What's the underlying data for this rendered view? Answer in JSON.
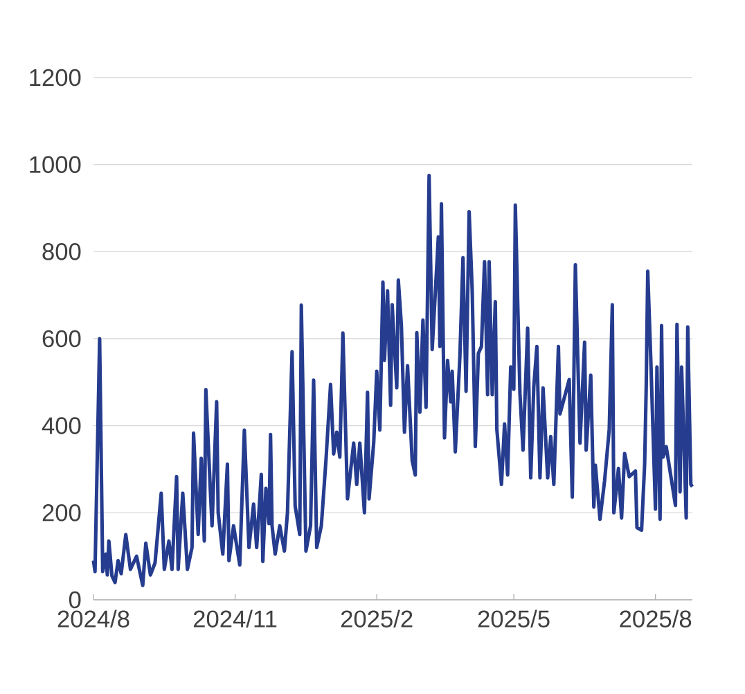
{
  "chart_data": {
    "type": "line",
    "color": "#253c8f",
    "grid": "y",
    "marker": "none",
    "line_style": "solid",
    "ylim": [
      0,
      1200
    ],
    "yticks": [
      0,
      200,
      400,
      600,
      800,
      1000,
      1200
    ],
    "xlim": [
      "2024-08-01",
      "2025-08-25"
    ],
    "xticks": [
      {
        "value": "2024-08-01",
        "label": "2024/8"
      },
      {
        "value": "2024-11-01",
        "label": "2024/11"
      },
      {
        "value": "2025-02-01",
        "label": "2025/2"
      },
      {
        "value": "2025-05-01",
        "label": "2025/5"
      },
      {
        "value": "2025-08-01",
        "label": "2025/8"
      }
    ],
    "x": [
      "2024-08-01",
      "2024-08-02",
      "2024-08-05",
      "2024-08-07",
      "2024-08-09",
      "2024-08-10",
      "2024-08-11",
      "2024-08-13",
      "2024-08-15",
      "2024-08-17",
      "2024-08-19",
      "2024-08-22",
      "2024-08-25",
      "2024-08-29",
      "2024-09-02",
      "2024-09-04",
      "2024-09-07",
      "2024-09-10",
      "2024-09-14",
      "2024-09-16",
      "2024-09-19",
      "2024-09-21",
      "2024-09-24",
      "2024-09-25",
      "2024-09-28",
      "2024-10-01",
      "2024-10-04",
      "2024-10-05",
      "2024-10-08",
      "2024-10-10",
      "2024-10-12",
      "2024-10-13",
      "2024-10-16",
      "2024-10-17",
      "2024-10-20",
      "2024-10-21",
      "2024-10-24",
      "2024-10-27",
      "2024-10-28",
      "2024-10-31",
      "2024-11-04",
      "2024-11-07",
      "2024-11-10",
      "2024-11-13",
      "2024-11-15",
      "2024-11-18",
      "2024-11-19",
      "2024-11-21",
      "2024-11-23",
      "2024-11-24",
      "2024-11-25",
      "2024-11-27",
      "2024-11-30",
      "2024-12-03",
      "2024-12-05",
      "2024-12-08",
      "2024-12-10",
      "2024-12-13",
      "2024-12-14",
      "2024-12-17",
      "2024-12-20",
      "2024-12-22",
      "2024-12-24",
      "2024-12-27",
      "2024-12-30",
      "2025-01-02",
      "2025-01-04",
      "2025-01-06",
      "2025-01-08",
      "2025-01-10",
      "2025-01-13",
      "2025-01-17",
      "2025-01-19",
      "2025-01-21",
      "2025-01-24",
      "2025-01-26",
      "2025-01-27",
      "2025-01-30",
      "2025-02-01",
      "2025-02-03",
      "2025-02-05",
      "2025-02-06",
      "2025-02-08",
      "2025-02-10",
      "2025-02-11",
      "2025-02-14",
      "2025-02-15",
      "2025-02-17",
      "2025-02-19",
      "2025-02-21",
      "2025-02-24",
      "2025-02-26",
      "2025-02-27",
      "2025-03-01",
      "2025-03-03",
      "2025-03-05",
      "2025-03-07",
      "2025-03-09",
      "2025-03-13",
      "2025-03-14",
      "2025-03-15",
      "2025-03-17",
      "2025-03-19",
      "2025-03-21",
      "2025-03-22",
      "2025-03-24",
      "2025-03-27",
      "2025-03-29",
      "2025-03-31",
      "2025-04-02",
      "2025-04-04",
      "2025-04-06",
      "2025-04-08",
      "2025-04-10",
      "2025-04-12",
      "2025-04-14",
      "2025-04-15",
      "2025-04-17",
      "2025-04-19",
      "2025-04-20",
      "2025-04-23",
      "2025-04-25",
      "2025-04-27",
      "2025-04-29",
      "2025-05-01",
      "2025-05-02",
      "2025-05-05",
      "2025-05-07",
      "2025-05-10",
      "2025-05-12",
      "2025-05-14",
      "2025-05-16",
      "2025-05-18",
      "2025-05-20",
      "2025-05-23",
      "2025-05-25",
      "2025-05-27",
      "2025-05-30",
      "2025-05-31",
      "2025-06-06",
      "2025-06-08",
      "2025-06-10",
      "2025-06-13",
      "2025-06-16",
      "2025-06-17",
      "2025-06-20",
      "2025-06-22",
      "2025-06-23",
      "2025-06-26",
      "2025-06-29",
      "2025-07-02",
      "2025-07-04",
      "2025-07-05",
      "2025-07-08",
      "2025-07-10",
      "2025-07-12",
      "2025-07-15",
      "2025-07-19",
      "2025-07-20",
      "2025-07-23",
      "2025-07-25",
      "2025-07-26",
      "2025-07-27",
      "2025-07-29",
      "2025-08-01",
      "2025-08-02",
      "2025-08-04",
      "2025-08-05",
      "2025-08-06",
      "2025-08-08",
      "2025-08-14",
      "2025-08-15",
      "2025-08-17",
      "2025-08-18",
      "2025-08-21",
      "2025-08-22",
      "2025-08-24",
      "2025-08-25"
    ],
    "values": [
      90,
      65,
      600,
      65,
      105,
      57,
      135,
      55,
      40,
      90,
      60,
      150,
      70,
      100,
      33,
      130,
      57,
      85,
      245,
      70,
      135,
      70,
      283,
      70,
      245,
      70,
      120,
      383,
      150,
      325,
      135,
      483,
      245,
      170,
      455,
      200,
      105,
      312,
      90,
      170,
      80,
      390,
      120,
      220,
      120,
      288,
      88,
      256,
      175,
      380,
      170,
      105,
      170,
      112,
      200,
      570,
      215,
      150,
      677,
      112,
      170,
      505,
      120,
      170,
      320,
      495,
      335,
      385,
      328,
      613,
      232,
      360,
      265,
      360,
      200,
      477,
      232,
      360,
      525,
      390,
      730,
      550,
      710,
      447,
      678,
      487,
      735,
      630,
      385,
      538,
      320,
      287,
      614,
      431,
      643,
      442,
      975,
      575,
      834,
      582,
      910,
      372,
      550,
      455,
      525,
      340,
      560,
      786,
      479,
      892,
      710,
      352,
      566,
      582,
      777,
      471,
      777,
      471,
      685,
      392,
      265,
      404,
      287,
      535,
      484,
      907,
      474,
      344,
      624,
      280,
      490,
      582,
      280,
      487,
      280,
      375,
      265,
      582,
      427,
      506,
      236,
      770,
      360,
      592,
      344,
      516,
      213,
      309,
      185,
      274,
      392,
      678,
      200,
      302,
      188,
      336,
      283,
      296,
      166,
      160,
      312,
      487,
      755,
      550,
      208,
      535,
      185,
      630,
      328,
      352,
      217,
      633,
      248,
      535,
      188,
      627,
      265,
      260
    ]
  }
}
